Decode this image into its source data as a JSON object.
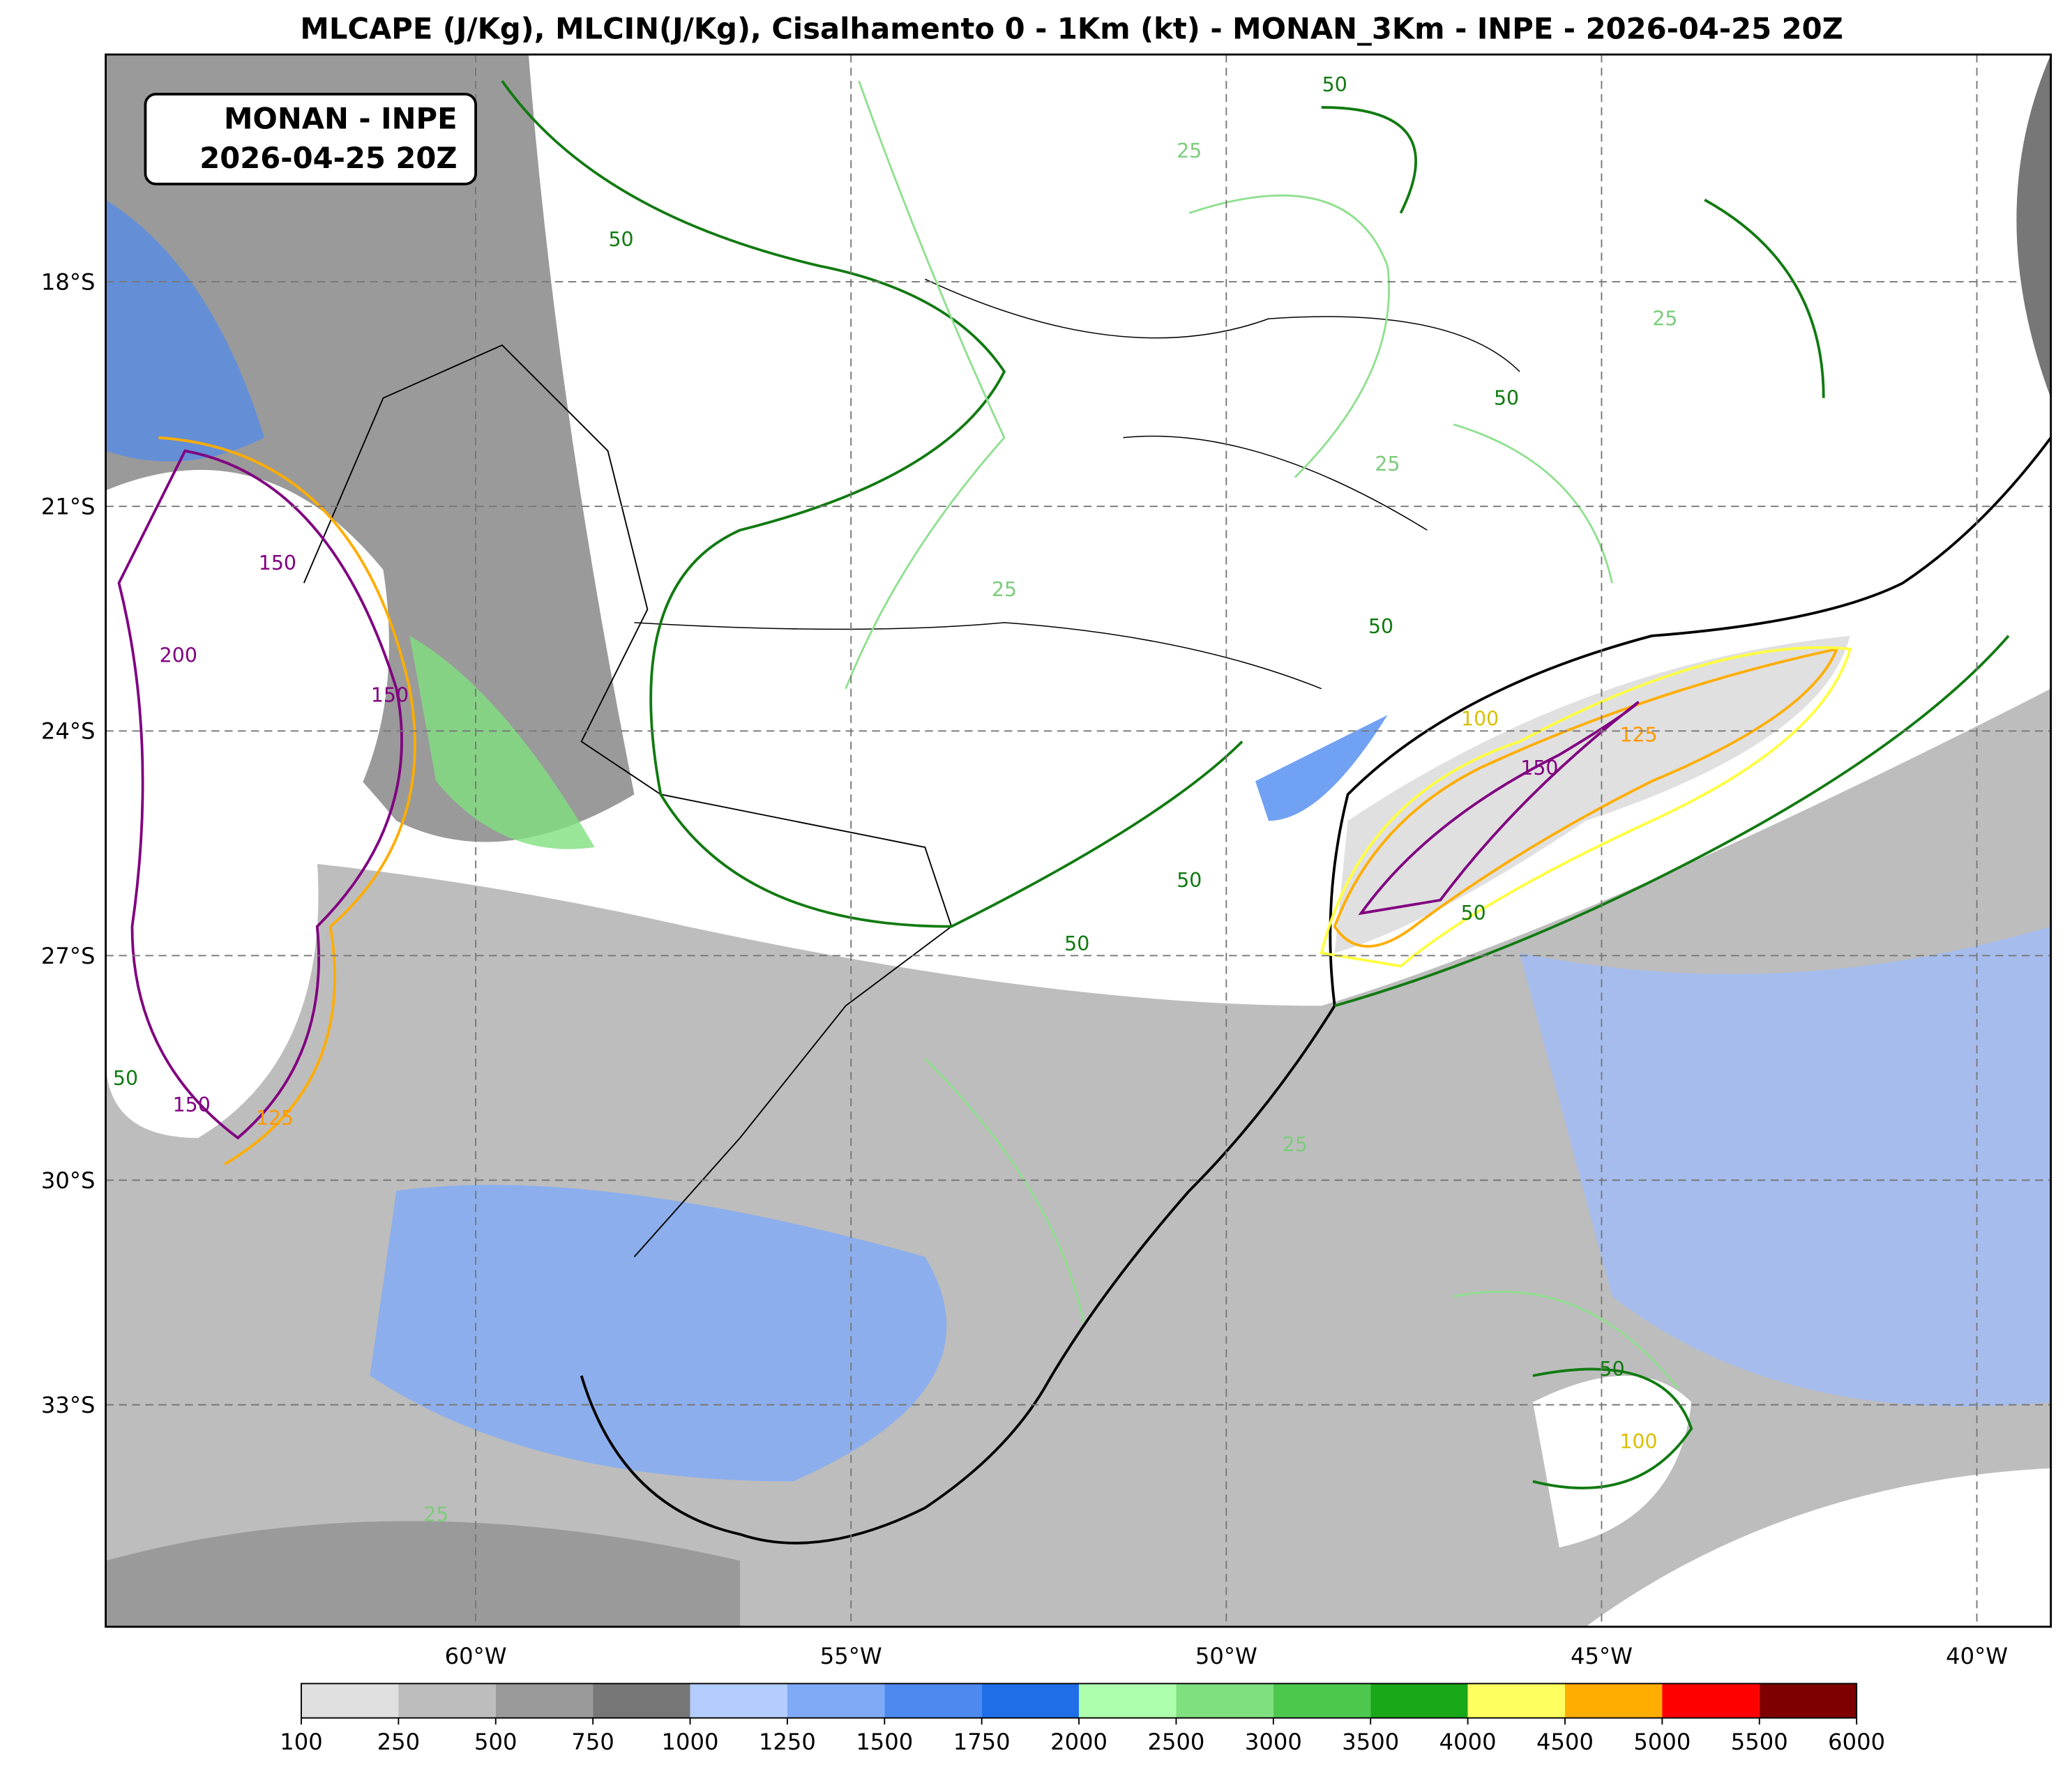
{
  "header": {
    "title": "MLCAPE (J/Kg), MLCIN(J/Kg), Cisalhamento 0 - 1Km (kt) - MONAN_3Km - INPE - 2026-04-25 20Z"
  },
  "label_box": {
    "line1": "MONAN - INPE",
    "line2": "2026-04-25 20Z"
  },
  "lat_labels": [
    "18°S",
    "21°S",
    "24°S",
    "27°S",
    "30°S",
    "33°S"
  ],
  "lon_labels": [
    "60°W",
    "55°W",
    "50°W",
    "45°W",
    "40°W"
  ],
  "colorbar": {
    "bounds": [
      100,
      250,
      500,
      750,
      1000,
      1250,
      1500,
      1750,
      2000,
      2500,
      3000,
      3500,
      4000,
      4500,
      5000,
      5500,
      6000
    ],
    "colors": [
      "#e0e0e0",
      "#bdbdbd",
      "#9a9a9a",
      "#777777",
      "#b3cdff",
      "#7faaf7",
      "#4d8af0",
      "#1f6ee8",
      "#adffad",
      "#7fe07f",
      "#4cc84c",
      "#18a818",
      "#ffff60",
      "#ffad00",
      "#ff0000",
      "#7f0000"
    ]
  },
  "contour_labels": [
    "50",
    "25",
    "50",
    "25",
    "50",
    "25",
    "50",
    "50",
    "50",
    "150",
    "200",
    "150",
    "150",
    "125",
    "50",
    "100",
    "150",
    "125",
    "50",
    "25",
    "50",
    "100",
    "25",
    "25"
  ]
}
